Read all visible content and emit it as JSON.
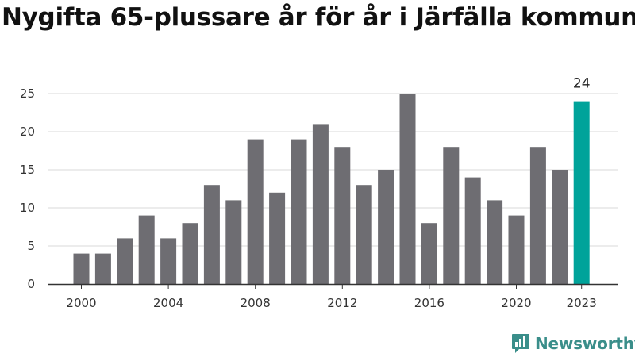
{
  "title": "Nygifta 65-plussare år för år i Järfälla kommun",
  "brand": {
    "name": "Newsworthy",
    "icon": "newsworthy-logo-icon"
  },
  "colors": {
    "bar": "#6e6d72",
    "highlight": "#00a39a",
    "grid": "#d9d9d9",
    "axis": "#333333",
    "brand": "#3a8e8a"
  },
  "chart_data": {
    "type": "bar",
    "title": "Nygifta 65-plussare år för år i Järfälla kommun",
    "xlabel": "",
    "ylabel": "",
    "categories": [
      2000,
      2001,
      2002,
      2003,
      2004,
      2005,
      2006,
      2007,
      2008,
      2009,
      2010,
      2011,
      2012,
      2013,
      2014,
      2015,
      2016,
      2017,
      2018,
      2019,
      2020,
      2021,
      2022,
      2023
    ],
    "values": [
      4,
      4,
      6,
      9,
      6,
      8,
      13,
      11,
      19,
      12,
      19,
      21,
      18,
      13,
      15,
      25,
      8,
      18,
      14,
      11,
      9,
      18,
      15,
      24
    ],
    "highlight": {
      "category": 2023,
      "label": "24"
    },
    "x_tick_labels": [
      "2000",
      "2004",
      "2008",
      "2012",
      "2016",
      "2020",
      "2023"
    ],
    "y_ticks": [
      0,
      5,
      10,
      15,
      20,
      25
    ],
    "ylim": [
      0,
      25
    ],
    "grid": true
  }
}
